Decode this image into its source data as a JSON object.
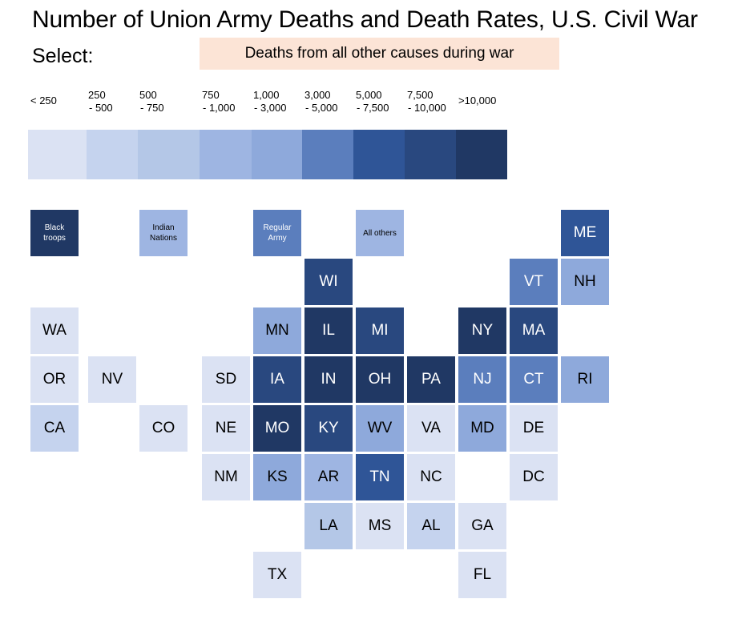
{
  "title": "Number of Union Army Deaths and Death Rates, U.S. Civil War",
  "select_label": "Select:",
  "selector_value": "Deaths from all other causes during war",
  "colors": [
    "#dbe2f3",
    "#c5d3ee",
    "#b4c7e7",
    "#9eb5e2",
    "#8ea9db",
    "#5b7ebd",
    "#2f5597",
    "#29487f",
    "#203864"
  ],
  "legend": [
    {
      "line1": "< 250",
      "line2": ""
    },
    {
      "line1": "250",
      "line2": "- 500"
    },
    {
      "line1": "500",
      "line2": "- 750"
    },
    {
      "line1": "750",
      "line2": "- 1,000"
    },
    {
      "line1": "1,000",
      "line2": "- 3,000"
    },
    {
      "line1": "3,000",
      "line2": "- 5,000"
    },
    {
      "line1": "5,000",
      "line2": "- 7,500"
    },
    {
      "line1": "7,500",
      "line2": "- 10,000"
    },
    {
      "line1": ">10,000",
      "line2": ""
    }
  ],
  "chart_data": {
    "type": "heatmap",
    "title": "Number of Union Army Deaths and Death Rates, U.S. Civil War",
    "legend_bins": [
      "< 250",
      "250 - 500",
      "500 - 750",
      "750 - 1,000",
      "1,000 - 3,000",
      "3,000 - 5,000",
      "5,000 - 7,500",
      "7,500 - 10,000",
      ">10,000"
    ],
    "tiles": [
      {
        "label": "Black troops",
        "line1": "Black",
        "line2": "troops",
        "bin": 8
      },
      {
        "label": "Indian Nations",
        "line1": "Indian",
        "line2": "Nations",
        "bin": 3
      },
      {
        "label": "Regular Army",
        "line1": "Regular",
        "line2": "Army",
        "bin": 5
      },
      {
        "label": "All others",
        "line1": "All others",
        "line2": "",
        "bin": 3
      },
      {
        "label": "ME",
        "bin": 6
      },
      {
        "label": "WI",
        "bin": 7
      },
      {
        "label": "VT",
        "bin": 5
      },
      {
        "label": "NH",
        "bin": 4
      },
      {
        "label": "WA",
        "bin": 0
      },
      {
        "label": "MN",
        "bin": 4
      },
      {
        "label": "IL",
        "bin": 8
      },
      {
        "label": "MI",
        "bin": 7
      },
      {
        "label": "NY",
        "bin": 8
      },
      {
        "label": "MA",
        "bin": 7
      },
      {
        "label": "OR",
        "bin": 0
      },
      {
        "label": "NV",
        "bin": 0
      },
      {
        "label": "SD",
        "bin": 0
      },
      {
        "label": "IA",
        "bin": 7
      },
      {
        "label": "IN",
        "bin": 8
      },
      {
        "label": "OH",
        "bin": 8
      },
      {
        "label": "PA",
        "bin": 8
      },
      {
        "label": "NJ",
        "bin": 5
      },
      {
        "label": "CT",
        "bin": 5
      },
      {
        "label": "RI",
        "bin": 4
      },
      {
        "label": "CA",
        "bin": 1
      },
      {
        "label": "CO",
        "bin": 0
      },
      {
        "label": "NE",
        "bin": 0
      },
      {
        "label": "MO",
        "bin": 8
      },
      {
        "label": "KY",
        "bin": 7
      },
      {
        "label": "WV",
        "bin": 4
      },
      {
        "label": "VA",
        "bin": 0
      },
      {
        "label": "MD",
        "bin": 4
      },
      {
        "label": "DE",
        "bin": 0
      },
      {
        "label": "NM",
        "bin": 0
      },
      {
        "label": "KS",
        "bin": 4
      },
      {
        "label": "AR",
        "bin": 3
      },
      {
        "label": "TN",
        "bin": 6
      },
      {
        "label": "NC",
        "bin": 0
      },
      {
        "label": "DC",
        "bin": 0
      },
      {
        "label": "LA",
        "bin": 2
      },
      {
        "label": "MS",
        "bin": 0
      },
      {
        "label": "AL",
        "bin": 1
      },
      {
        "label": "GA",
        "bin": 0
      },
      {
        "label": "TX",
        "bin": 0
      },
      {
        "label": "FL",
        "bin": 0
      }
    ]
  }
}
